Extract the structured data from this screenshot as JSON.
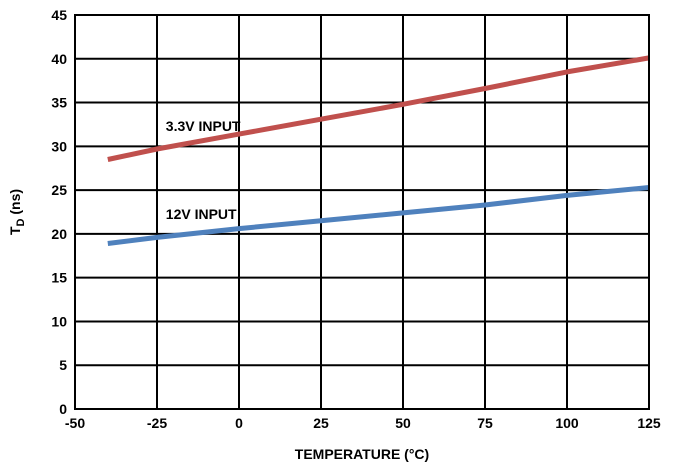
{
  "chart_data": {
    "type": "line",
    "title": "",
    "xlabel": "TEMPERATURE (°C)",
    "ylabel_main": "T",
    "ylabel_sub": "D",
    "ylabel_unit": " (ns)",
    "xlim": [
      -50,
      125
    ],
    "ylim": [
      0,
      45
    ],
    "x_ticks": [
      -50,
      -25,
      0,
      25,
      50,
      75,
      100,
      125
    ],
    "y_ticks": [
      0,
      5,
      10,
      15,
      20,
      25,
      30,
      35,
      40,
      45
    ],
    "x_tick_labels": [
      "-50",
      "-25",
      "0",
      "25",
      "50",
      "75",
      "100",
      "125"
    ],
    "y_tick_labels": [
      "0",
      "5",
      "10",
      "15",
      "20",
      "25",
      "30",
      "35",
      "40",
      "45"
    ],
    "grid": true,
    "legend": "none",
    "series": [
      {
        "name": "3.3V INPUT",
        "color": "#c0504d",
        "x": [
          -40,
          -25,
          0,
          25,
          50,
          75,
          100,
          125
        ],
        "y": [
          28.5,
          29.7,
          31.4,
          33.1,
          34.8,
          36.6,
          38.5,
          40.1
        ]
      },
      {
        "name": "12V INPUT",
        "color": "#4f81bd",
        "x": [
          -40,
          -25,
          0,
          25,
          50,
          75,
          100,
          125
        ],
        "y": [
          18.9,
          19.6,
          20.6,
          21.5,
          22.4,
          23.3,
          24.4,
          25.3
        ]
      }
    ],
    "annotations": [
      {
        "text": "3.3V INPUT",
        "series": 0,
        "x": -40,
        "y": 32.3
      },
      {
        "text": "12V INPUT",
        "series": 1,
        "x": -40,
        "y": 22.3
      }
    ]
  }
}
